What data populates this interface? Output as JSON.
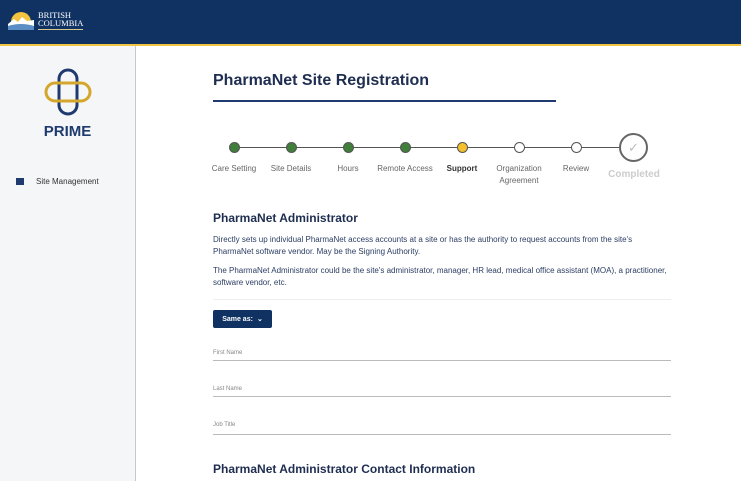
{
  "header": {
    "logo_line1": "BRITISH",
    "logo_line2": "COLUMBIA"
  },
  "sidebar": {
    "app_name": "PRIME",
    "items": [
      {
        "label": "Site Management",
        "icon": "store-icon"
      }
    ]
  },
  "page": {
    "title": "PharmaNet Site Registration"
  },
  "stepper": {
    "steps": [
      {
        "label": "Care Setting",
        "status": "complete"
      },
      {
        "label": "Site Details",
        "status": "complete"
      },
      {
        "label": "Hours",
        "status": "complete"
      },
      {
        "label": "Remote Access",
        "status": "complete"
      },
      {
        "label": "Support",
        "status": "current"
      },
      {
        "label": "Organization Agreement",
        "status": "pending"
      },
      {
        "label": "Review",
        "status": "pending"
      }
    ],
    "final_label": "Completed"
  },
  "colors": {
    "complete": "#3f7f3a",
    "current": "#f3c12e",
    "brand": "#0f3263",
    "accent": "#f3c440"
  },
  "section": {
    "title": "PharmaNet Administrator",
    "desc1": "Directly sets up individual PharmaNet access accounts at a site or has the authority to request accounts from the site's PharmaNet software vendor. May be the Signing Authority.",
    "desc2": "The PharmaNet Administrator could be the site's administrator, manager, HR lead, medical office assistant (MOA), a practitioner, software vendor, etc.",
    "same_as_label": "Same as:",
    "fields": [
      {
        "label": "First Name",
        "value": ""
      },
      {
        "label": "Last Name",
        "value": ""
      },
      {
        "label": "Job Title",
        "value": ""
      }
    ]
  },
  "section2": {
    "title": "PharmaNet Administrator Contact Information"
  }
}
